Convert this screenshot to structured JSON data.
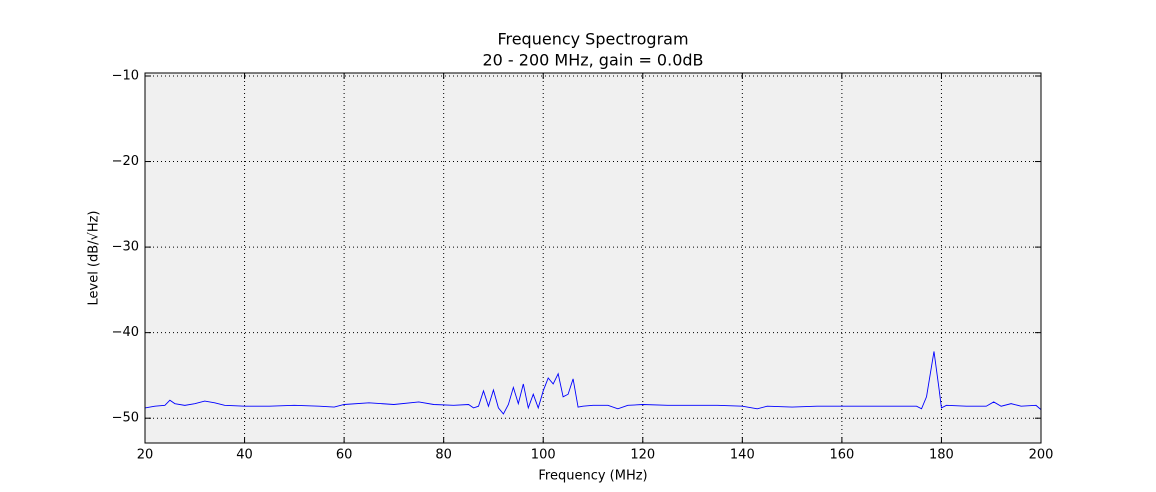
{
  "chart_data": {
    "type": "line",
    "title": "Frequency Spectrogram",
    "subtitle": "20 - 200 MHz, gain = 0.0dB",
    "x_label": "Frequency (MHz)",
    "y_label": "Level (dB/√Hz)",
    "xlim": [
      20,
      200
    ],
    "xticks": [
      20,
      40,
      60,
      80,
      100,
      120,
      140,
      160,
      180,
      200
    ],
    "ylim": [
      -52.9,
      -9.65
    ],
    "yticks": [
      {
        "value": -50,
        "label": "−50"
      },
      {
        "value": -40,
        "label": "−40"
      },
      {
        "value": -30,
        "label": "−30"
      },
      {
        "value": -20,
        "label": "−20"
      },
      {
        "value": -10,
        "label": "−10"
      }
    ],
    "grid": true,
    "series": [
      {
        "color": "#0000ff",
        "x": [
          20,
          22,
          24,
          25,
          26,
          28,
          30,
          32,
          34,
          36,
          40,
          45,
          50,
          55,
          58,
          60,
          65,
          70,
          75,
          78,
          82,
          85,
          86,
          87,
          88,
          89,
          90,
          91,
          92,
          93,
          94,
          95,
          96,
          97,
          98,
          99,
          100,
          101,
          102,
          103,
          104,
          105,
          106,
          107,
          108,
          110,
          113,
          115,
          117,
          120,
          125,
          130,
          135,
          140,
          143,
          145,
          150,
          155,
          160,
          165,
          170,
          175,
          176,
          177,
          178.5,
          179.5,
          180,
          181,
          185,
          189,
          190.5,
          192,
          194,
          196,
          199,
          200
        ],
        "values": [
          -48.8,
          -48.6,
          -48.5,
          -47.9,
          -48.3,
          -48.5,
          -48.3,
          -48.0,
          -48.2,
          -48.5,
          -48.6,
          -48.6,
          -48.5,
          -48.6,
          -48.7,
          -48.4,
          -48.2,
          -48.4,
          -48.1,
          -48.4,
          -48.5,
          -48.4,
          -48.8,
          -48.6,
          -46.8,
          -48.6,
          -46.7,
          -48.8,
          -49.5,
          -48.4,
          -46.4,
          -48.3,
          -46.0,
          -48.8,
          -47.2,
          -48.8,
          -46.8,
          -45.3,
          -46.0,
          -44.8,
          -47.5,
          -47.2,
          -45.4,
          -48.7,
          -48.6,
          -48.5,
          -48.5,
          -48.9,
          -48.5,
          -48.4,
          -48.5,
          -48.5,
          -48.5,
          -48.6,
          -48.9,
          -48.6,
          -48.7,
          -48.6,
          -48.6,
          -48.6,
          -48.6,
          -48.6,
          -48.9,
          -47.5,
          -42.2,
          -46.5,
          -48.8,
          -48.5,
          -48.6,
          -48.6,
          -48.1,
          -48.6,
          -48.3,
          -48.6,
          -48.5,
          -49.0
        ]
      }
    ]
  }
}
